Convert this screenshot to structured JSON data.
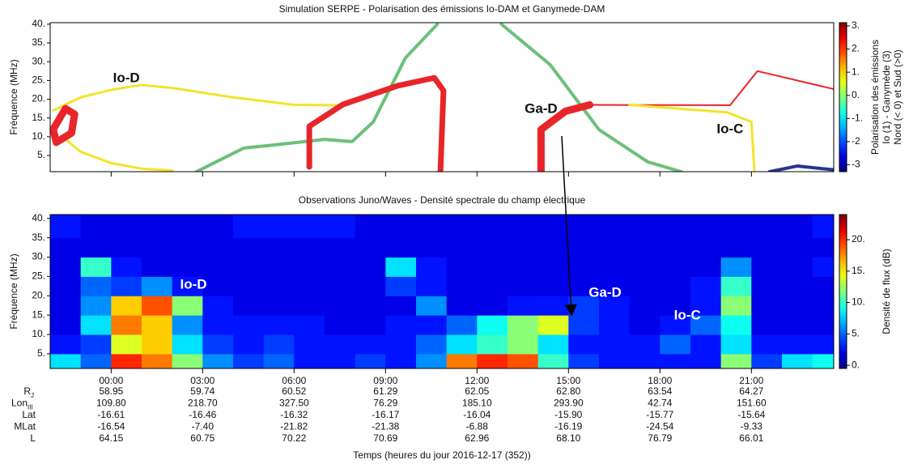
{
  "chart_data": [
    {
      "type": "line",
      "title": "Simulation SERPE - Polarisation des émissions Io-DAM et Ganymede-DAM",
      "ylabel": "Fréquence (MHz)",
      "xlim": [
        -2,
        23.7
      ],
      "xticks": [
        0,
        3,
        6,
        9,
        12,
        15,
        18,
        21
      ],
      "ylim": [
        0.7,
        40.4
      ],
      "yticks": [
        {
          "value": 5,
          "label": "5."
        },
        {
          "value": 10,
          "label": "10."
        },
        {
          "value": 15,
          "label": "15."
        },
        {
          "value": 20,
          "label": "20."
        },
        {
          "value": 25,
          "label": "25."
        },
        {
          "value": 30,
          "label": "30."
        },
        {
          "value": 35,
          "label": "35."
        },
        {
          "value": 40,
          "label": "40."
        }
      ],
      "curves": [
        {
          "color": "#f3e42a",
          "width": 3,
          "x": [
            -1.9,
            -1,
            0,
            1,
            2,
            4,
            6,
            7.5
          ],
          "y": [
            17,
            20.5,
            22.5,
            23.8,
            23,
            20.5,
            18.5,
            18.4
          ]
        },
        {
          "color": "#f3e42a",
          "width": 3,
          "x": [
            -1.6,
            -1,
            0,
            1,
            2
          ],
          "y": [
            10,
            6,
            3,
            1.5,
            1
          ]
        },
        {
          "color": "#e8252a",
          "width": 9,
          "x": [
            -1.9,
            -1.5,
            -1.2,
            -1.3,
            -1.8,
            -1.9
          ],
          "y": [
            12,
            17.5,
            16,
            11,
            8.5,
            12
          ]
        },
        {
          "color": "#6cc07a",
          "width": 4,
          "x": [
            2.8,
            4.35,
            5.1,
            7,
            7.9,
            8.6,
            9.65,
            10.7
          ],
          "y": [
            0.7,
            7,
            7.6,
            9.3,
            8.7,
            14,
            31,
            40
          ]
        },
        {
          "color": "#6cc07a",
          "width": 4,
          "x": [
            12.8,
            14.4,
            16,
            17.6,
            18.7
          ],
          "y": [
            40,
            29.2,
            11.9,
            3.3,
            0.7
          ]
        },
        {
          "color": "#e8252a",
          "width": 7,
          "x": [
            6.5,
            6.5,
            7.6,
            9.4,
            10.6,
            10.9,
            10.8
          ],
          "y": [
            2,
            12.8,
            18.6,
            23.6,
            25.7,
            22.3,
            0.7
          ]
        },
        {
          "color": "#e8252a",
          "width": 9,
          "x": [
            14.1,
            14.1,
            14.9,
            15.7
          ],
          "y": [
            0.7,
            11.9,
            16.8,
            18.5
          ]
        },
        {
          "color": "#e8252a",
          "width": 2,
          "x": [
            15.7,
            20.3,
            21.2,
            23.7
          ],
          "y": [
            18.5,
            18.4,
            27.5,
            22.7
          ]
        },
        {
          "color": "#f3e42a",
          "width": 3,
          "x": [
            17,
            20.2,
            21,
            21.1
          ],
          "y": [
            18.5,
            16.5,
            14,
            0.7
          ]
        },
        {
          "color": "#26358f",
          "width": 4,
          "x": [
            21.6,
            22.5,
            23.7
          ],
          "y": [
            0.7,
            2.2,
            1.2
          ]
        }
      ],
      "annotations": [
        {
          "text": "Io-D",
          "x": 0.5,
          "y": 25.5
        },
        {
          "text": "Ga-D",
          "x": 14.1,
          "y": 17.3
        },
        {
          "text": "Io-C",
          "x": 20.3,
          "y": 11.9
        }
      ],
      "colormap": "jet",
      "clim": [
        -3.3,
        3.14
      ],
      "cticks": [
        {
          "value": 3,
          "label": "3."
        },
        {
          "value": 2,
          "label": "2."
        },
        {
          "value": 1,
          "label": "1."
        },
        {
          "value": 0,
          "label": "0."
        },
        {
          "value": -1,
          "label": "-1."
        },
        {
          "value": -2,
          "label": "-2"
        },
        {
          "value": -3,
          "label": "-3"
        }
      ],
      "colorbar_label": [
        "Polarisation des émissions",
        "Io (1) - Ganymède (3)",
        "Nord (< 0) et Sud (>0)"
      ]
    },
    {
      "type": "heatmap",
      "title": "Observations Juno/Waves - Densité spectrale du champ électrique",
      "ylabel": "Fréquence (MHz)",
      "xlabel": "Temps (heures du jour 2016-12-17 (352))",
      "xlim": [
        -2,
        23.7
      ],
      "xticks": [
        {
          "value": 0,
          "label": "00:00"
        },
        {
          "value": 3,
          "label": "03:00"
        },
        {
          "value": 6,
          "label": "06:00"
        },
        {
          "value": 9,
          "label": "09:00"
        },
        {
          "value": 12,
          "label": "12:00"
        },
        {
          "value": 15,
          "label": "15:00"
        },
        {
          "value": 18,
          "label": "18:00"
        },
        {
          "value": 21,
          "label": "21:00"
        }
      ],
      "ylim": [
        1.2,
        41
      ],
      "yticks": [
        {
          "value": 5,
          "label": "5."
        },
        {
          "value": 10,
          "label": "10."
        },
        {
          "value": 15,
          "label": "15."
        },
        {
          "value": 20,
          "label": "20."
        },
        {
          "value": 25,
          "label": "25."
        },
        {
          "value": 30,
          "label": "30."
        },
        {
          "value": 35,
          "label": "35."
        },
        {
          "value": 40,
          "label": "40."
        }
      ],
      "x_edges": [
        -2,
        -1,
        0,
        1,
        2,
        3,
        4,
        5,
        6,
        7,
        8,
        9,
        10,
        11,
        12,
        13,
        14,
        15,
        16,
        17,
        18,
        19,
        20,
        21,
        22,
        23,
        23.7
      ],
      "y_edges": [
        1.2,
        5,
        10,
        15,
        20,
        25,
        30,
        35,
        41
      ],
      "z": [
        [
          8,
          5,
          20,
          18,
          12,
          6,
          4,
          5,
          3,
          3,
          4,
          3,
          6,
          18,
          20,
          19,
          10,
          4,
          3,
          3,
          3,
          3,
          12,
          4,
          8,
          9
        ],
        [
          3,
          4,
          14,
          16,
          8,
          4,
          3,
          4,
          3,
          3,
          3,
          3,
          5,
          8,
          10,
          12,
          8,
          3,
          3,
          3,
          5,
          3,
          8,
          3,
          3,
          3
        ],
        [
          2,
          8,
          18,
          16,
          6,
          3,
          3,
          3,
          3,
          2,
          2,
          3,
          3,
          5,
          9,
          12,
          14,
          4,
          3,
          2,
          3,
          5,
          9,
          2,
          2,
          2
        ],
        [
          2,
          6,
          16,
          19,
          12,
          3,
          2,
          2,
          2,
          2,
          2,
          2,
          6,
          2,
          2,
          3,
          3,
          4,
          3,
          2,
          2,
          3,
          12,
          2,
          2,
          2
        ],
        [
          2,
          5,
          4,
          6,
          3,
          2,
          2,
          2,
          2,
          2,
          2,
          4,
          3,
          2,
          2,
          2,
          2,
          2,
          2,
          2,
          2,
          3,
          10,
          2,
          2,
          2
        ],
        [
          2,
          10,
          3,
          2,
          2,
          2,
          2,
          2,
          2,
          2,
          2,
          8,
          3,
          2,
          2,
          2,
          2,
          2,
          2,
          2,
          2,
          2,
          6,
          2,
          2,
          3
        ],
        [
          2,
          2,
          2,
          2,
          2,
          2,
          2,
          2,
          2,
          2,
          2,
          2,
          2,
          2,
          2,
          2,
          2,
          2,
          2,
          2,
          2,
          2,
          2,
          2,
          2,
          2
        ],
        [
          3,
          2,
          2,
          2,
          2,
          2,
          3,
          3,
          3,
          3,
          2,
          2,
          2,
          2,
          2,
          2,
          2,
          2,
          2,
          2,
          2,
          2,
          2,
          2,
          2,
          3
        ]
      ],
      "annotations": [
        {
          "text": "Io-D",
          "x": 2.7,
          "y": 22.8
        },
        {
          "text": "Ga-D",
          "x": 16.2,
          "y": 20.7
        },
        {
          "text": "Io-C",
          "x": 18.9,
          "y": 14.8
        }
      ],
      "colormap": "jet",
      "clim": [
        -0.5,
        24
      ],
      "cticks": [
        {
          "value": 0,
          "label": "0."
        },
        {
          "value": 5,
          "label": "5."
        },
        {
          "value": 10,
          "label": "10."
        },
        {
          "value": 15,
          "label": "15."
        },
        {
          "value": 20,
          "label": "20."
        }
      ],
      "colorbar_label": [
        "Densité de flux (dB)"
      ],
      "ephemeris": [
        {
          "label": "R",
          "sub": "J",
          "values": [
            "58.95",
            "59.74",
            "60.52",
            "61.29",
            "62.05",
            "62.80",
            "63.54",
            "64.27"
          ]
        },
        {
          "label": "Lon",
          "sub": "III",
          "values": [
            "109.80",
            "218.70",
            "327.50",
            "76.29",
            "185.10",
            "293.90",
            "42.74",
            "151.60"
          ]
        },
        {
          "label": "Lat",
          "values": [
            "-16.61",
            "-16.46",
            "-16.32",
            "-16.17",
            "-16.04",
            "-15.90",
            "-15.77",
            "-15.64"
          ]
        },
        {
          "label": "MLat",
          "values": [
            "-16.54",
            "-7.40",
            "-21.82",
            "-21.38",
            "-6.88",
            "-16.19",
            "-24.54",
            "-9.33"
          ]
        },
        {
          "label": "L",
          "values": [
            "64.15",
            "60.75",
            "70.22",
            "70.69",
            "62.96",
            "68.10",
            "76.79",
            "66.01"
          ]
        }
      ]
    }
  ]
}
